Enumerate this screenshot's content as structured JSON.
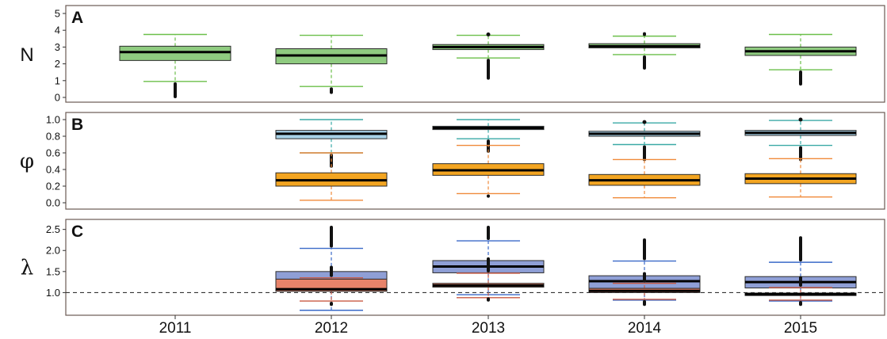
{
  "chart_data": {
    "type": "boxplot",
    "x_categories": [
      "2011",
      "2012",
      "2013",
      "2014",
      "2015"
    ],
    "panels": [
      {
        "label": "A",
        "ylabel": "N",
        "ylim": [
          0,
          5
        ],
        "yticks": [
          "0",
          "1",
          "2",
          "3",
          "4",
          "5"
        ],
        "reference_line": null,
        "series": [
          {
            "color": "#8fcb80",
            "whisker_color": "#6bbf4a",
            "boxes": [
              {
                "year": "2011",
                "q1": 2.2,
                "median": 2.7,
                "q3": 3.05,
                "whisker_low": 0.95,
                "whisker_high": 3.75,
                "out_low": 0.05,
                "out_high": null
              },
              {
                "year": "2012",
                "q1": 2.0,
                "median": 2.5,
                "q3": 2.9,
                "whisker_low": 0.65,
                "whisker_high": 3.7,
                "out_low": 0.3,
                "out_high": null
              },
              {
                "year": "2013",
                "q1": 2.85,
                "median": 3.0,
                "q3": 3.15,
                "whisker_low": 2.35,
                "whisker_high": 3.7,
                "out_low": 1.15,
                "out_high": 3.75
              },
              {
                "year": "2014",
                "q1": 2.95,
                "median": 3.05,
                "q3": 3.2,
                "whisker_low": 2.55,
                "whisker_high": 3.65,
                "out_low": 1.75,
                "out_high": 3.75
              },
              {
                "year": "2015",
                "q1": 2.5,
                "median": 2.75,
                "q3": 3.0,
                "whisker_low": 1.65,
                "whisker_high": 3.75,
                "out_low": 0.8,
                "out_high": null
              }
            ]
          }
        ]
      },
      {
        "label": "B",
        "ylabel": "φ",
        "ylim": [
          0,
          1
        ],
        "yticks": [
          "0.0",
          "0.2",
          "0.4",
          "0.6",
          "0.8",
          "1.0"
        ],
        "reference_line": null,
        "series": [
          {
            "color": "#a8d2e8",
            "whisker_color": "#3aa9a6",
            "boxes": [
              {
                "year": "2012",
                "q1": 0.77,
                "median": 0.83,
                "q3": 0.87,
                "whisker_low": 0.6,
                "whisker_high": 1.0,
                "out_low": 0.44,
                "out_high": null
              },
              {
                "year": "2013",
                "q1": 0.88,
                "median": 0.9,
                "q3": 0.92,
                "whisker_low": 0.77,
                "whisker_high": 1.0,
                "out_low": 0.62,
                "out_high": null
              },
              {
                "year": "2014",
                "q1": 0.8,
                "median": 0.83,
                "q3": 0.86,
                "whisker_low": 0.7,
                "whisker_high": 0.96,
                "out_low": 0.52,
                "out_high": 0.97
              },
              {
                "year": "2015",
                "q1": 0.81,
                "median": 0.84,
                "q3": 0.87,
                "whisker_low": 0.69,
                "whisker_high": 0.99,
                "out_low": 0.52,
                "out_high": 1.0
              }
            ]
          },
          {
            "color": "#f3a521",
            "whisker_color": "#f08a3a",
            "boxes": [
              {
                "year": "2012",
                "q1": 0.2,
                "median": 0.27,
                "q3": 0.36,
                "whisker_low": 0.03,
                "whisker_high": 0.6,
                "out_low": null,
                "out_high": null
              },
              {
                "year": "2013",
                "q1": 0.33,
                "median": 0.39,
                "q3": 0.47,
                "whisker_low": 0.11,
                "whisker_high": 0.69,
                "out_low": 0.08,
                "out_high": null
              },
              {
                "year": "2014",
                "q1": 0.21,
                "median": 0.27,
                "q3": 0.34,
                "whisker_low": 0.06,
                "whisker_high": 0.52,
                "out_low": null,
                "out_high": null
              },
              {
                "year": "2015",
                "q1": 0.23,
                "median": 0.29,
                "q3": 0.35,
                "whisker_low": 0.07,
                "whisker_high": 0.53,
                "out_low": null,
                "out_high": null
              }
            ]
          }
        ]
      },
      {
        "label": "C",
        "ylabel": "λ",
        "ylim": [
          0.5,
          2.55
        ],
        "yticks": [
          "1.0",
          "1.5",
          "2.0",
          "2.5"
        ],
        "reference_line": 1.0,
        "series": [
          {
            "color": "#8f9fd6",
            "whisker_color": "#3a69c8",
            "boxes": [
              {
                "year": "2012",
                "q1": 1.05,
                "median": 1.3,
                "q3": 1.5,
                "whisker_low": 0.58,
                "whisker_high": 2.05,
                "out_low": null,
                "out_high": 2.55
              },
              {
                "year": "2013",
                "q1": 1.47,
                "median": 1.62,
                "q3": 1.76,
                "whisker_low": 0.95,
                "whisker_high": 2.23,
                "out_low": null,
                "out_high": 2.55
              },
              {
                "year": "2014",
                "q1": 1.1,
                "median": 1.27,
                "q3": 1.4,
                "whisker_low": 0.82,
                "whisker_high": 1.75,
                "out_low": null,
                "out_high": 2.25
              },
              {
                "year": "2015",
                "q1": 1.11,
                "median": 1.25,
                "q3": 1.38,
                "whisker_low": 0.8,
                "whisker_high": 1.72,
                "out_low": null,
                "out_high": 2.3
              }
            ]
          },
          {
            "color": "#e8836a",
            "whisker_color": "#c95a44",
            "boxes": [
              {
                "year": "2012",
                "q1": 1.03,
                "median": 1.08,
                "q3": 1.32,
                "whisker_low": 0.8,
                "whisker_high": 1.35,
                "out_low": 0.72,
                "out_high": 1.6
              },
              {
                "year": "2013",
                "q1": 1.13,
                "median": 1.17,
                "q3": 1.22,
                "whisker_low": 0.88,
                "whisker_high": 1.46,
                "out_low": 0.85,
                "out_high": 1.8
              },
              {
                "year": "2014",
                "q1": 1.0,
                "median": 1.04,
                "q3": 1.1,
                "whisker_low": 0.84,
                "whisker_high": 1.22,
                "out_low": 0.72,
                "out_high": 1.45
              },
              {
                "year": "2015",
                "q1": 0.93,
                "median": 0.96,
                "q3": 0.99,
                "whisker_low": 0.82,
                "whisker_high": 1.12,
                "out_low": 0.72,
                "out_high": 1.35
              }
            ]
          }
        ]
      }
    ]
  }
}
